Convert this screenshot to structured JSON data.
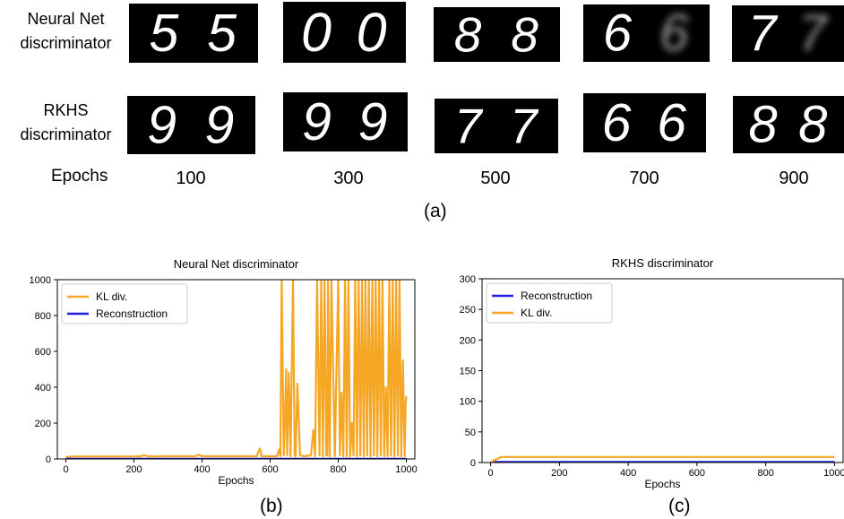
{
  "row_labels": {
    "neural": [
      "Neural Net",
      "discriminator"
    ],
    "rkhs": [
      "RKHS",
      "discriminator"
    ],
    "epochs": "Epochs"
  },
  "epochs": [
    "100",
    "300",
    "500",
    "700",
    "900"
  ],
  "digits": {
    "neural": [
      [
        "5",
        "5"
      ],
      [
        "0",
        "0"
      ],
      [
        "8",
        "8"
      ],
      [
        "6",
        "blurred"
      ],
      [
        "7",
        "blurred"
      ]
    ],
    "rkhs": [
      [
        "9",
        "9"
      ],
      [
        "9",
        "9"
      ],
      [
        "7",
        "7"
      ],
      [
        "6",
        "6"
      ],
      [
        "8",
        "8"
      ]
    ]
  },
  "panel_labels": {
    "a": "(a)",
    "b": "(b)",
    "c": "(c)"
  },
  "colors": {
    "kl": "#f5a623",
    "reconstruction": "#1f1fdd",
    "frame": "#000000"
  },
  "chart_data": [
    {
      "type": "line",
      "title": "Neural Net discriminator",
      "xlabel": "Epochs",
      "ylabel": "",
      "xlim": [
        -25,
        1025
      ],
      "ylim": [
        0,
        1000
      ],
      "xticks": [
        0,
        200,
        400,
        600,
        800,
        1000
      ],
      "yticks": [
        0,
        200,
        400,
        600,
        800,
        1000
      ],
      "legend_position": "top-left",
      "series": [
        {
          "name": "KL div.",
          "color": "#f5a623",
          "x": [
            0,
            5,
            30,
            80,
            150,
            220,
            230,
            240,
            300,
            380,
            390,
            400,
            450,
            500,
            560,
            570,
            575,
            580,
            620,
            627,
            630,
            634,
            640,
            643,
            647,
            650,
            655,
            660,
            667,
            672,
            675,
            680,
            688,
            700,
            720,
            727,
            732,
            738,
            745,
            750,
            755,
            760,
            765,
            768,
            770,
            775,
            780,
            790,
            800,
            805,
            810,
            815,
            820,
            825,
            830,
            835,
            840,
            845,
            850,
            855,
            860,
            865,
            870,
            875,
            880,
            885,
            890,
            895,
            900,
            905,
            910,
            915,
            920,
            925,
            930,
            935,
            940,
            945,
            950,
            955,
            960,
            965,
            970,
            975,
            980,
            985,
            990,
            995,
            998,
            1000
          ],
          "y": [
            5,
            12,
            14,
            14,
            14,
            14,
            22,
            14,
            15,
            15,
            23,
            15,
            15,
            15,
            15,
            58,
            15,
            15,
            15,
            55,
            15,
            1000,
            20,
            170,
            500,
            20,
            480,
            15,
            1000,
            20,
            15,
            420,
            20,
            15,
            20,
            160,
            15,
            1000,
            20,
            1000,
            15,
            1000,
            20,
            20,
            1000,
            15,
            1000,
            15,
            1000,
            20,
            370,
            15,
            1000,
            15,
            1000,
            15,
            200,
            20,
            1000,
            15,
            1000,
            20,
            1000,
            15,
            1000,
            20,
            1000,
            15,
            1000,
            20,
            1000,
            15,
            1000,
            20,
            1000,
            15,
            400,
            15,
            1000,
            20,
            1000,
            15,
            1000,
            20,
            1000,
            15,
            550,
            15,
            300,
            350
          ]
        },
        {
          "name": "Reconstruction",
          "color": "#1f1fdd",
          "x": [
            0,
            1000
          ],
          "y": [
            1,
            1
          ]
        }
      ]
    },
    {
      "type": "line",
      "title": "RKHS discriminator",
      "xlabel": "Epochs",
      "ylabel": "",
      "xlim": [
        -25,
        1025
      ],
      "ylim": [
        0,
        300
      ],
      "xticks": [
        0,
        200,
        400,
        600,
        800,
        1000
      ],
      "yticks": [
        0,
        50,
        100,
        150,
        200,
        250,
        300
      ],
      "legend_position": "top-left",
      "series": [
        {
          "name": "Reconstruction",
          "color": "#1f1fdd",
          "x": [
            0,
            1000
          ],
          "y": [
            1,
            1
          ]
        },
        {
          "name": "KL div.",
          "color": "#f5a623",
          "x": [
            0,
            5,
            10,
            20,
            30,
            40,
            100,
            200,
            400,
            600,
            800,
            1000
          ],
          "y": [
            2,
            0.5,
            4,
            6,
            9,
            9,
            9,
            9,
            9,
            9,
            9,
            9
          ]
        }
      ]
    }
  ]
}
